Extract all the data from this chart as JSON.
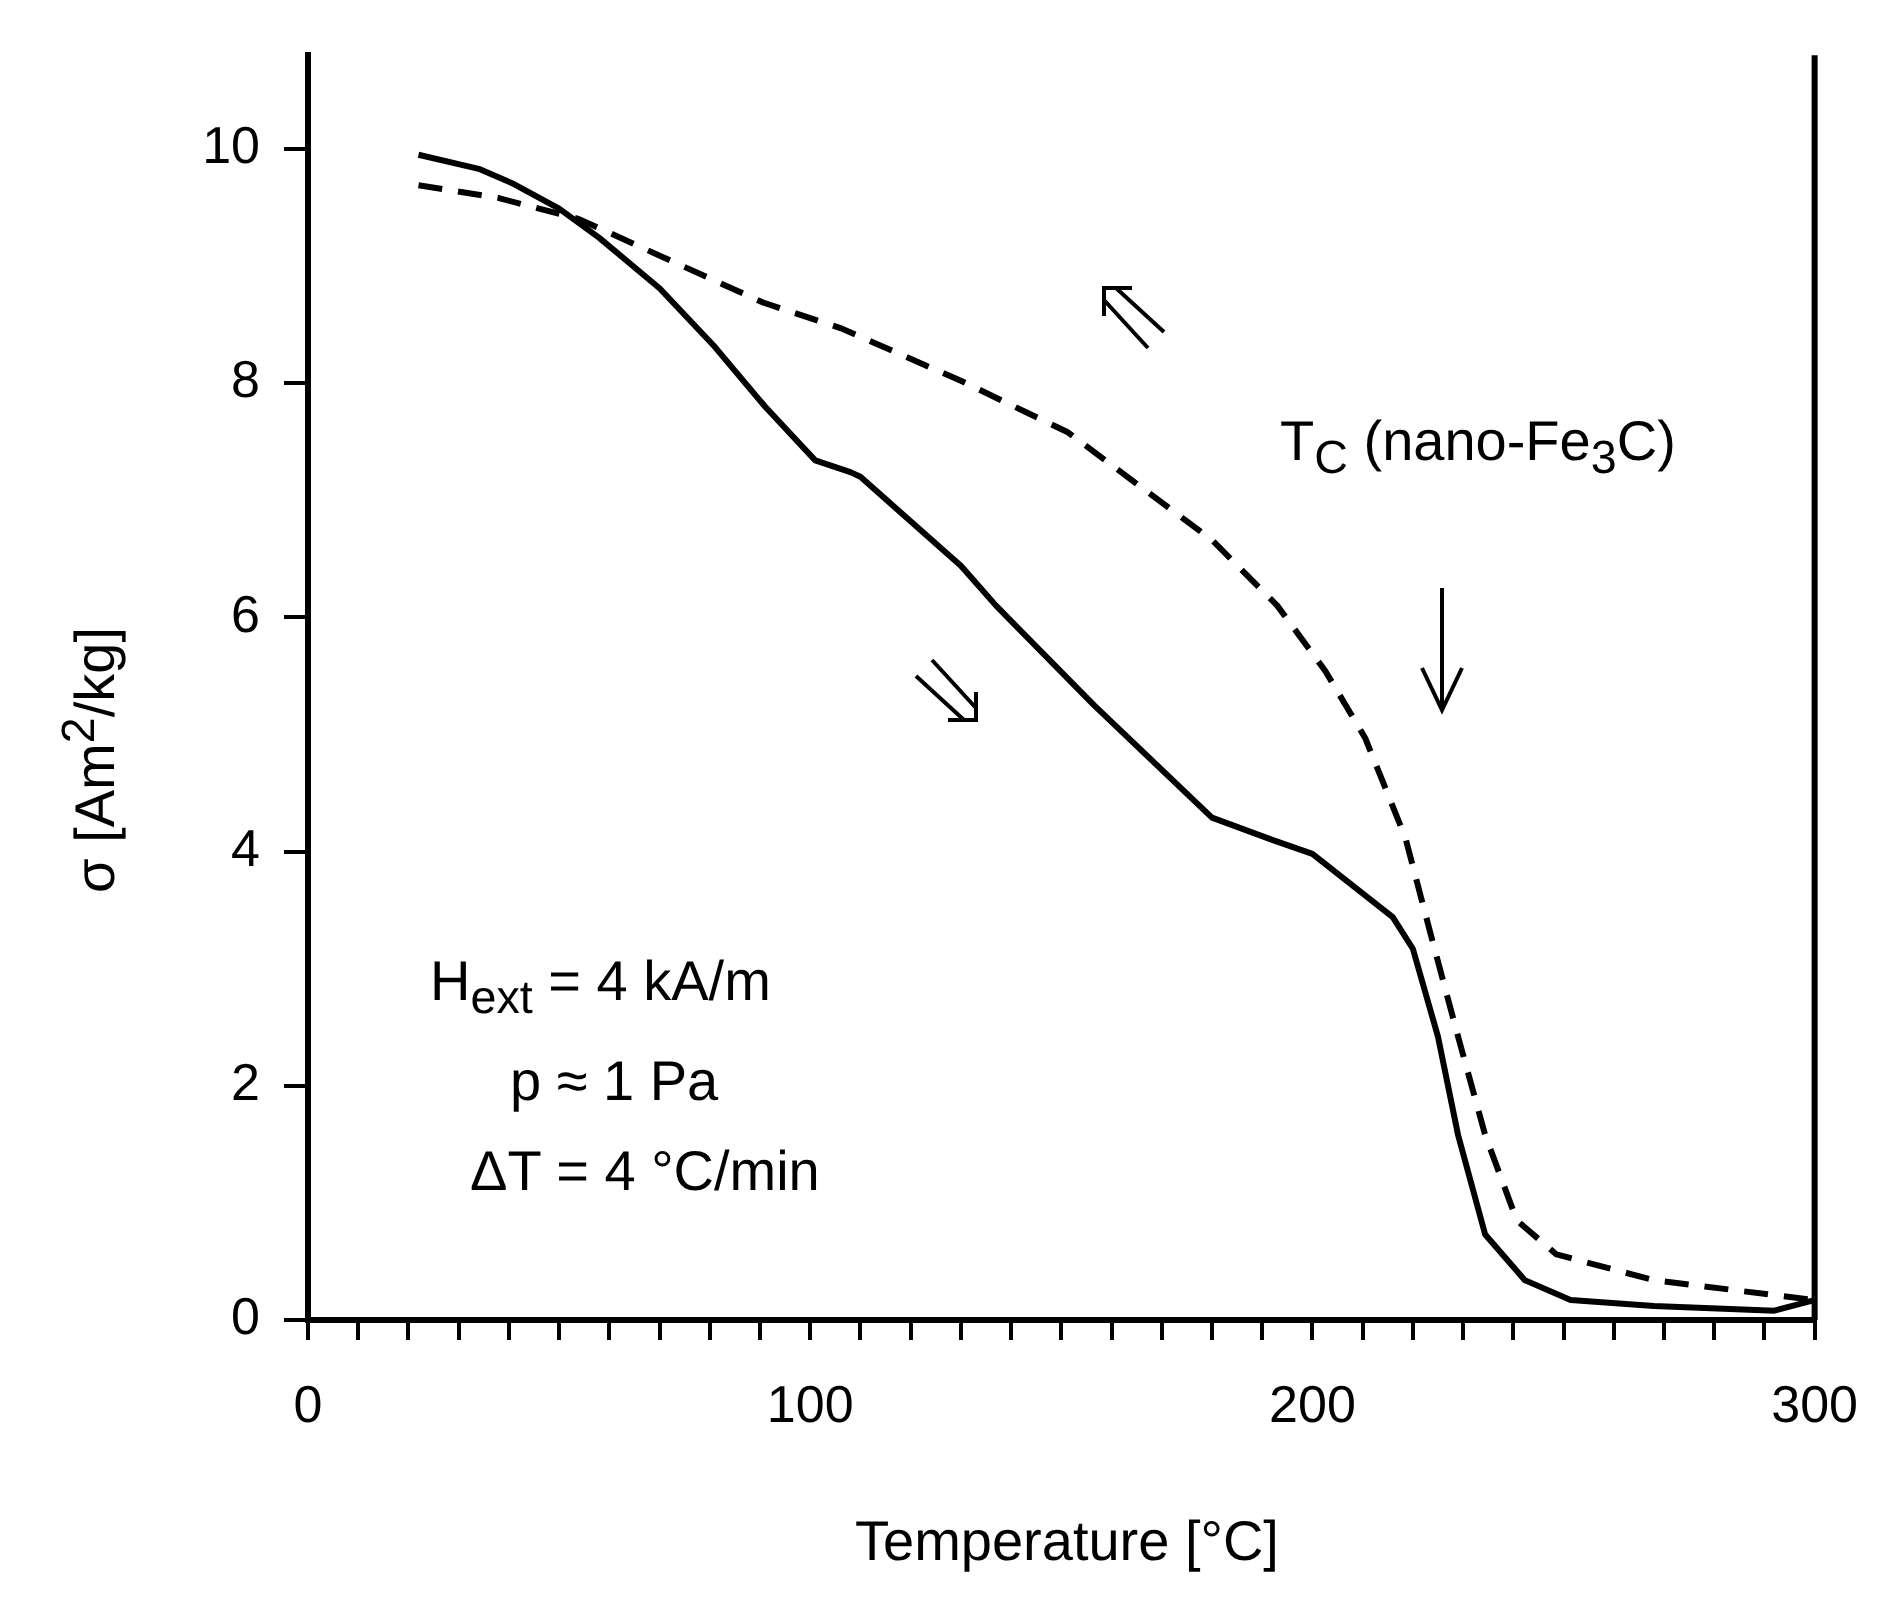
{
  "chart_data": {
    "type": "line",
    "xlabel": "Temperature  [°C]",
    "ylabel": "σ   [Am$^{2}$/kg]",
    "annotations": [
      "T$_{C}$ (nano-Fe$_{3}$C)",
      "H$_{ext}$ = 4 kA/m",
      "p ≈ 1 Pa",
      "ΔT = 4 °C/min"
    ],
    "xlim": [
      0,
      300
    ],
    "ylim": [
      0,
      10.8
    ],
    "xticks": [
      0,
      {
        "value": 10,
        "label": null
      },
      {
        "value": 20,
        "label": null
      },
      {
        "value": 30,
        "label": null
      },
      {
        "value": 40,
        "label": null
      },
      {
        "value": 50,
        "label": null
      },
      {
        "value": 60,
        "label": null
      },
      {
        "value": 70,
        "label": null
      },
      {
        "value": 80,
        "label": null
      },
      {
        "value": 90,
        "label": null
      },
      100,
      {
        "value": 110,
        "label": null
      },
      {
        "value": 120,
        "label": null
      },
      {
        "value": 130,
        "label": null
      },
      {
        "value": 140,
        "label": null
      },
      {
        "value": 150,
        "label": null
      },
      {
        "value": 160,
        "label": null
      },
      {
        "value": 170,
        "label": null
      },
      {
        "value": 180,
        "label": null
      },
      {
        "value": 190,
        "label": null
      },
      200,
      {
        "value": 210,
        "label": null
      },
      {
        "value": 220,
        "label": null
      },
      {
        "value": 230,
        "label": null
      },
      {
        "value": 240,
        "label": null
      },
      {
        "value": 250,
        "label": null
      },
      {
        "value": 260,
        "label": null
      },
      {
        "value": 270,
        "label": null
      },
      {
        "value": 280,
        "label": null
      },
      {
        "value": 290,
        "label": null
      },
      300
    ],
    "yticks": [
      0,
      2,
      4,
      6,
      8,
      10
    ],
    "grid": false,
    "legend": false,
    "marker": "none",
    "series": [
      {
        "color": "#000000",
        "line_style": "solid",
        "x": [
          22,
          34,
          41,
          50,
          58,
          70,
          81,
          91,
          101,
          108,
          110,
          130,
          137,
          156.5,
          180,
          192,
          200,
          216,
          220,
          225,
          229,
          234.4,
          242.3,
          251.4,
          268,
          292,
          300
        ],
        "values": [
          9.95,
          9.83,
          9.7,
          9.49,
          9.24,
          8.81,
          8.31,
          7.8,
          7.34,
          7.24,
          7.2,
          6.44,
          6.1,
          5.25,
          4.29,
          4.1,
          3.98,
          3.44,
          3.17,
          2.42,
          1.58,
          0.73,
          0.34,
          0.17,
          0.12,
          0.08,
          0.17
        ]
      },
      {
        "color": "#000000",
        "line_style": "dashed",
        "x": [
          22,
          38,
          54,
          90.5,
          106,
          130,
          151.3,
          180,
          193,
          202.6,
          210.5,
          218.5,
          223.7,
          229,
          234.4,
          240.7,
          248.6,
          268,
          300
        ],
        "values": [
          9.69,
          9.58,
          9.4,
          8.69,
          8.47,
          8.02,
          7.58,
          6.66,
          6.1,
          5.54,
          4.97,
          4.12,
          3.27,
          2.42,
          1.58,
          0.85,
          0.56,
          0.34,
          0.17
        ]
      }
    ]
  }
}
